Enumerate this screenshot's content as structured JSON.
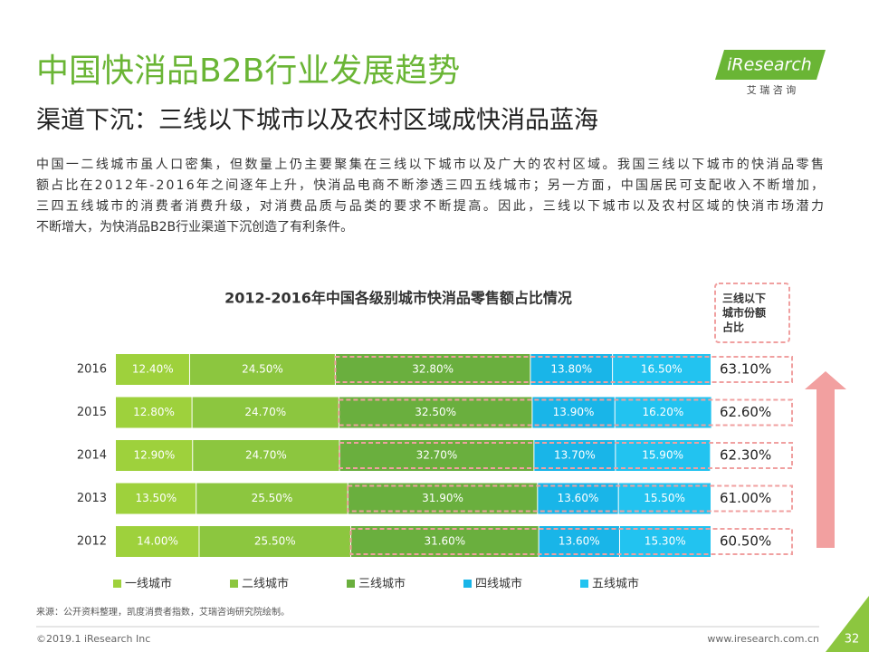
{
  "header": {
    "title": "中国快消品B2B行业发展趋势",
    "subtitle": "渠道下沉：三线以下城市以及农村区域成快消品蓝海",
    "logo": "iResearch",
    "logo_sub": "艾 瑞 咨 询"
  },
  "intro": [
    "中国一二线城市虽人口密集，但数量上仍主要聚集在三线以下城市以及广大的农村区域。我国三线以下城市的快消品零售",
    "额占比在2012年-2016年之间逐年上升，快消品电商不断渗透三四五线城市；另一方面，中国居民可支配收入不断增加，",
    "三四五线城市的消费者消费升级，对消费品质与品类的要求不断提高。因此，三线以下城市以及农村区域的快消市场潜力",
    "不断增大，为快消品B2B行业渠道下沉创造了有利条件。"
  ],
  "chart_data": {
    "type": "stacked_hbar",
    "title": "2012-2016年中国各级别城市快消品零售额占比情况",
    "categories": [
      "2016",
      "2015",
      "2014",
      "2013",
      "2012"
    ],
    "xlim": [
      0,
      100
    ],
    "series": [
      {
        "name": "一线城市",
        "color": "#9ed13c",
        "values": [
          12.4,
          12.8,
          12.9,
          13.5,
          14.0
        ],
        "value_labels": [
          "12.40%",
          "12.80%",
          "12.90%",
          "13.50%",
          "14.00%"
        ]
      },
      {
        "name": "二线城市",
        "color": "#8cc63f",
        "values": [
          24.5,
          24.7,
          24.7,
          25.5,
          25.5
        ],
        "value_labels": [
          "24.50%",
          "24.70%",
          "24.70%",
          "25.50%",
          "25.50%"
        ]
      },
      {
        "name": "三线城市",
        "color": "#6aaf3e",
        "values": [
          32.8,
          32.5,
          32.7,
          31.9,
          31.6
        ],
        "value_labels": [
          "32.80%",
          "32.50%",
          "32.70%",
          "31.90%",
          "31.60%"
        ]
      },
      {
        "name": "四线城市",
        "color": "#19b5e8",
        "values": [
          13.8,
          13.9,
          13.7,
          13.6,
          13.6
        ],
        "value_labels": [
          "13.80%",
          "13.90%",
          "13.70%",
          "13.60%",
          "13.60%"
        ]
      },
      {
        "name": "五线城市",
        "color": "#22c3f0",
        "values": [
          16.5,
          16.2,
          15.9,
          15.5,
          15.3
        ],
        "value_labels": [
          "16.50%",
          "16.20%",
          "15.90%",
          "15.50%",
          "15.30%"
        ]
      }
    ],
    "share": {
      "title_lines": [
        "三线以下",
        "城市份额",
        "占比"
      ],
      "values": [
        63.1,
        62.6,
        62.3,
        61.0,
        60.5
      ],
      "value_labels": [
        "63.10%",
        "62.60%",
        "62.30%",
        "61.00%",
        "60.50%"
      ]
    }
  },
  "footer": {
    "source": "来源：公开资料整理，凯度消费者指数，艾瑞咨询研究院绘制。",
    "copyright": "©2019.1 iResearch Inc",
    "website": "www.iresearch.com.cn",
    "page": "32"
  }
}
